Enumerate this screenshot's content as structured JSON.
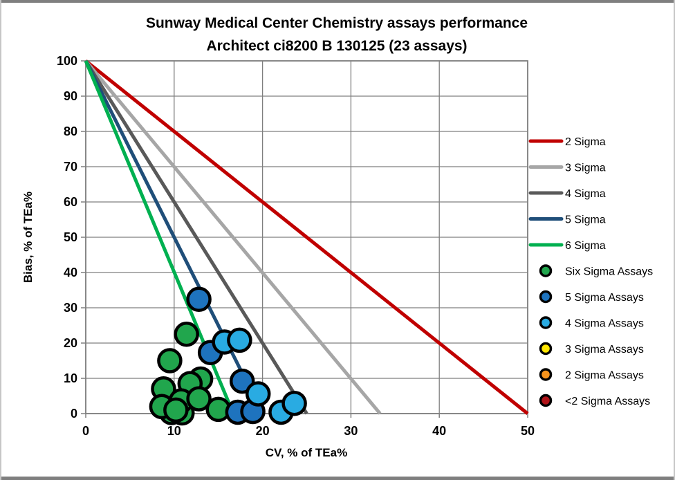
{
  "chart_data": {
    "type": "scatter",
    "title": "Sunway Medical Center Chemistry assays performance",
    "subtitle": "Architect ci8200 B 130125 (23 assays)",
    "xlabel": "CV, % of TEa%",
    "ylabel": "Bias, % of TEa%",
    "xlim": [
      0,
      50
    ],
    "ylim": [
      0,
      100
    ],
    "xticks": [
      0,
      10,
      20,
      30,
      40,
      50
    ],
    "yticks": [
      0,
      10,
      20,
      30,
      40,
      50,
      60,
      70,
      80,
      90,
      100
    ],
    "grid": true,
    "legend_position": "right",
    "colors": {
      "gridline": "#7F7F7F",
      "axis": "#7F7F7F",
      "frame_top_bottom": "#7F7F7F",
      "frame_sides": "#C6C6C6",
      "marker_outline": "#000000",
      "text": "#000000"
    },
    "sigma_lines": [
      {
        "label": "2 Sigma",
        "sigma": 2,
        "color": "#C00000",
        "points": [
          [
            0,
            100
          ],
          [
            50,
            0
          ]
        ]
      },
      {
        "label": "3 Sigma",
        "sigma": 3,
        "color": "#A6A6A6",
        "points": [
          [
            0,
            100
          ],
          [
            33.3,
            0
          ]
        ]
      },
      {
        "label": "4 Sigma",
        "sigma": 4,
        "color": "#595959",
        "points": [
          [
            0,
            100
          ],
          [
            25,
            0
          ]
        ]
      },
      {
        "label": "5 Sigma",
        "sigma": 5,
        "color": "#1F4E79",
        "points": [
          [
            0,
            100
          ],
          [
            20,
            0
          ]
        ]
      },
      {
        "label": "6 Sigma",
        "sigma": 6,
        "color": "#00B050",
        "points": [
          [
            0,
            100
          ],
          [
            16.7,
            0
          ]
        ]
      }
    ],
    "series": [
      {
        "name": "Six Sigma Assays",
        "color": "#21A64D",
        "points": [
          [
            9.7,
            0.3
          ],
          [
            10.9,
            0.2
          ],
          [
            12.1,
            6.2
          ],
          [
            11.4,
            22.5
          ],
          [
            9.5,
            15.0
          ],
          [
            13.0,
            9.8
          ],
          [
            11.8,
            8.5
          ],
          [
            8.8,
            7.0
          ],
          [
            10.8,
            3.6
          ],
          [
            12.8,
            4.2
          ],
          [
            8.6,
            2.0
          ],
          [
            10.2,
            1.0
          ],
          [
            15.0,
            1.2
          ]
        ]
      },
      {
        "name": "5 Sigma Assays",
        "color": "#1E73BE",
        "points": [
          [
            12.8,
            32.4
          ],
          [
            14.1,
            17.3
          ],
          [
            17.7,
            9.2
          ],
          [
            17.2,
            0.4
          ],
          [
            18.9,
            0.6
          ]
        ]
      },
      {
        "name": "4 Sigma Assays",
        "color": "#29ABE2",
        "points": [
          [
            15.7,
            20.3
          ],
          [
            17.4,
            20.8
          ],
          [
            19.5,
            5.6
          ],
          [
            22.1,
            0.4
          ],
          [
            23.6,
            2.9
          ]
        ]
      },
      {
        "name": "3 Sigma Assays",
        "color": "#FFE600",
        "points": []
      },
      {
        "name": "2 Sigma Assays",
        "color": "#F7941D",
        "points": []
      },
      {
        "name": "<2 Sigma Assays",
        "color": "#B01318",
        "points": []
      }
    ]
  }
}
